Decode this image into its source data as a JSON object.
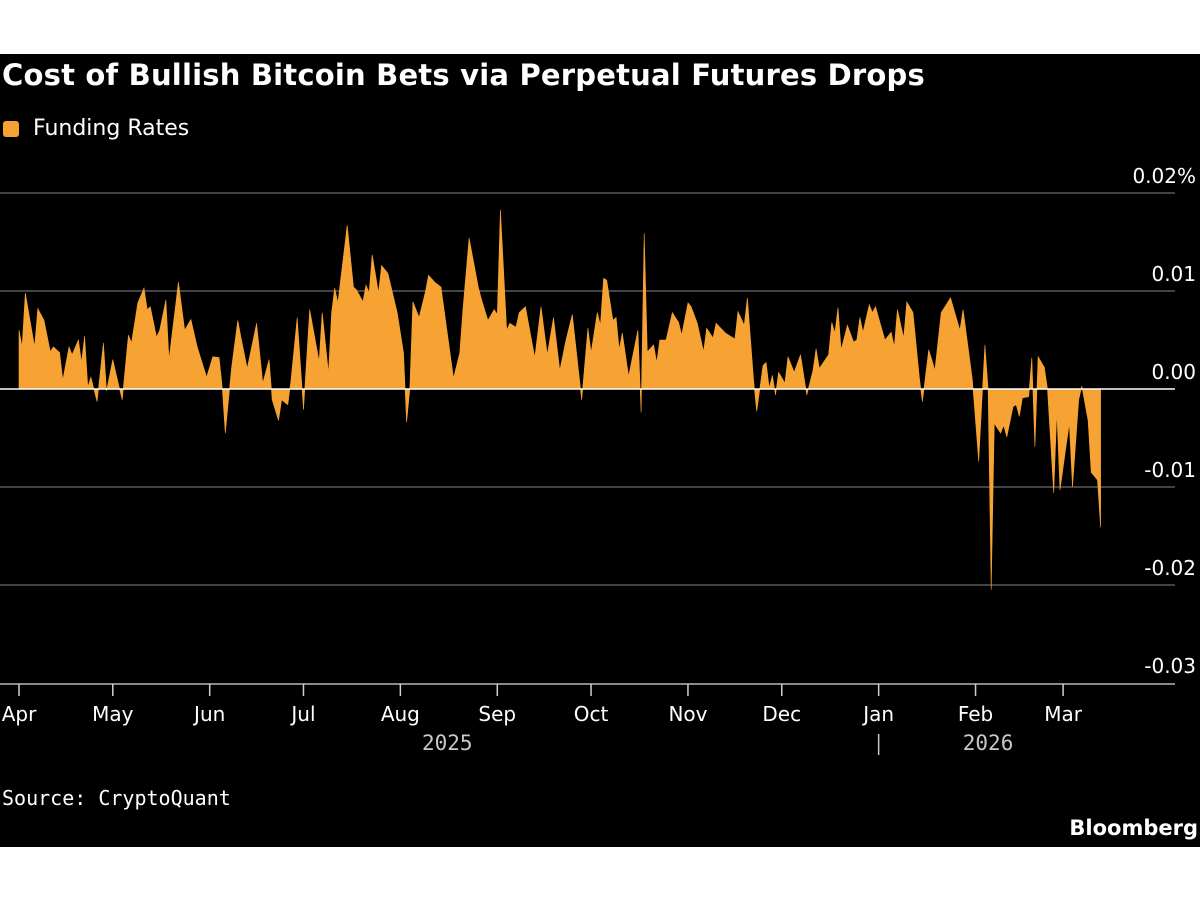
{
  "chart_data": {
    "type": "area",
    "title": "Cost of Bullish Bitcoin Bets via Perpetual Futures Drops",
    "legend": {
      "position": "top-left",
      "entries": [
        "Funding Rates"
      ]
    },
    "source": "Source: CryptoQuant",
    "brand": "Bloomberg",
    "colors": {
      "series": "#f7a334",
      "background": "#000000",
      "grid": "#5a5a5a",
      "zero_line": "#ffffff"
    },
    "ylim": [
      -0.03,
      0.02
    ],
    "y_unit": "%",
    "y_ticks": [
      {
        "value": 0.02,
        "label": "0.02%"
      },
      {
        "value": 0.01,
        "label": "0.01"
      },
      {
        "value": 0.0,
        "label": "0.00"
      },
      {
        "value": -0.01,
        "label": "-0.01"
      },
      {
        "value": -0.02,
        "label": "-0.02"
      },
      {
        "value": -0.03,
        "label": "-0.03"
      }
    ],
    "y_axis_side": "right",
    "grid": true,
    "x_ticks": [
      {
        "date": "2025-04-01",
        "label": "Apr"
      },
      {
        "date": "2025-05-01",
        "label": "May"
      },
      {
        "date": "2025-06-01",
        "label": "Jun"
      },
      {
        "date": "2025-07-01",
        "label": "Jul"
      },
      {
        "date": "2025-08-01",
        "label": "Aug"
      },
      {
        "date": "2025-09-01",
        "label": "Sep"
      },
      {
        "date": "2025-10-01",
        "label": "Oct"
      },
      {
        "date": "2025-11-01",
        "label": "Nov"
      },
      {
        "date": "2025-12-01",
        "label": "Dec"
      },
      {
        "date": "2026-01-01",
        "label": "Jan"
      },
      {
        "date": "2026-02-01",
        "label": "Feb"
      },
      {
        "date": "2026-03-01",
        "label": "Mar"
      }
    ],
    "x_years": [
      {
        "label": "2025",
        "center_date": "2025-08-16"
      },
      {
        "label": "2026",
        "center_date": "2026-02-05"
      }
    ],
    "x_range": [
      "2025-04-01",
      "2026-03-31"
    ],
    "series": [
      {
        "name": "Funding Rates",
        "points": [
          [
            "2025-04-01",
            0.006
          ],
          [
            "2025-04-02",
            0.0043
          ],
          [
            "2025-04-03",
            0.0098
          ],
          [
            "2025-04-06",
            0.0043
          ],
          [
            "2025-04-07",
            0.0082
          ],
          [
            "2025-04-09",
            0.007
          ],
          [
            "2025-04-11",
            0.0038
          ],
          [
            "2025-04-12",
            0.0043
          ],
          [
            "2025-04-14",
            0.0037
          ],
          [
            "2025-04-15",
            0.0009
          ],
          [
            "2025-04-17",
            0.0043
          ],
          [
            "2025-04-18",
            0.0035
          ],
          [
            "2025-04-20",
            0.005
          ],
          [
            "2025-04-21",
            0.0027
          ],
          [
            "2025-04-22",
            0.0054
          ],
          [
            "2025-04-23",
            0.0002
          ],
          [
            "2025-04-24",
            0.0012
          ],
          [
            "2025-04-26",
            -0.0013
          ],
          [
            "2025-04-28",
            0.0047
          ],
          [
            "2025-04-29",
            -0.0002
          ],
          [
            "2025-05-01",
            0.003
          ],
          [
            "2025-05-02",
            0.0016
          ],
          [
            "2025-05-04",
            -0.0011
          ],
          [
            "2025-05-06",
            0.0055
          ],
          [
            "2025-05-07",
            0.0047
          ],
          [
            "2025-05-09",
            0.0088
          ],
          [
            "2025-05-11",
            0.0103
          ],
          [
            "2025-05-12",
            0.0081
          ],
          [
            "2025-05-13",
            0.0084
          ],
          [
            "2025-05-15",
            0.0053
          ],
          [
            "2025-05-16",
            0.006
          ],
          [
            "2025-05-18",
            0.0091
          ],
          [
            "2025-05-19",
            0.003
          ],
          [
            "2025-05-22",
            0.0109
          ],
          [
            "2025-05-24",
            0.006
          ],
          [
            "2025-05-26",
            0.0071
          ],
          [
            "2025-05-28",
            0.0043
          ],
          [
            "2025-05-31",
            0.0012
          ],
          [
            "2025-06-02",
            0.0033
          ],
          [
            "2025-06-04",
            0.0032
          ],
          [
            "2025-06-05",
            0.0002
          ],
          [
            "2025-06-06",
            -0.0045
          ],
          [
            "2025-06-08",
            0.0022
          ],
          [
            "2025-06-10",
            0.007
          ],
          [
            "2025-06-11",
            0.0053
          ],
          [
            "2025-06-13",
            0.0021
          ],
          [
            "2025-06-16",
            0.0067
          ],
          [
            "2025-06-18",
            0.0006
          ],
          [
            "2025-06-20",
            0.003
          ],
          [
            "2025-06-21",
            -0.0011
          ],
          [
            "2025-06-23",
            -0.0032
          ],
          [
            "2025-06-24",
            -0.0011
          ],
          [
            "2025-06-26",
            -0.0016
          ],
          [
            "2025-06-27",
            0.0009
          ],
          [
            "2025-06-29",
            0.0073
          ],
          [
            "2025-07-01",
            -0.0021
          ],
          [
            "2025-07-03",
            0.0081
          ],
          [
            "2025-07-06",
            0.0028
          ],
          [
            "2025-07-07",
            0.0078
          ],
          [
            "2025-07-09",
            0.0016
          ],
          [
            "2025-07-10",
            0.0078
          ],
          [
            "2025-07-11",
            0.0103
          ],
          [
            "2025-07-12",
            0.0088
          ],
          [
            "2025-07-15",
            0.0167
          ],
          [
            "2025-07-17",
            0.0104
          ],
          [
            "2025-07-18",
            0.0101
          ],
          [
            "2025-07-20",
            0.0089
          ],
          [
            "2025-07-21",
            0.0106
          ],
          [
            "2025-07-22",
            0.0098
          ],
          [
            "2025-07-23",
            0.0137
          ],
          [
            "2025-07-25",
            0.0098
          ],
          [
            "2025-07-26",
            0.0126
          ],
          [
            "2025-07-28",
            0.0118
          ],
          [
            "2025-07-31",
            0.0078
          ],
          [
            "2025-08-02",
            0.0037
          ],
          [
            "2025-08-03",
            -0.0034
          ],
          [
            "2025-08-04",
            0.0
          ],
          [
            "2025-08-05",
            0.0089
          ],
          [
            "2025-08-07",
            0.0073
          ],
          [
            "2025-08-09",
            0.0099
          ],
          [
            "2025-08-10",
            0.0116
          ],
          [
            "2025-08-12",
            0.0109
          ],
          [
            "2025-08-14",
            0.0104
          ],
          [
            "2025-08-18",
            0.0011
          ],
          [
            "2025-08-20",
            0.0037
          ],
          [
            "2025-08-21",
            0.0081
          ],
          [
            "2025-08-23",
            0.0154
          ],
          [
            "2025-08-26",
            0.0103
          ],
          [
            "2025-08-27",
            0.0091
          ],
          [
            "2025-08-29",
            0.007
          ],
          [
            "2025-08-31",
            0.0081
          ],
          [
            "2025-09-01",
            0.0076
          ],
          [
            "2025-09-02",
            0.0183
          ],
          [
            "2025-09-04",
            0.006
          ],
          [
            "2025-09-05",
            0.0067
          ],
          [
            "2025-09-07",
            0.0063
          ],
          [
            "2025-09-08",
            0.0078
          ],
          [
            "2025-09-10",
            0.0084
          ],
          [
            "2025-09-13",
            0.0032
          ],
          [
            "2025-09-15",
            0.0084
          ],
          [
            "2025-09-17",
            0.0035
          ],
          [
            "2025-09-19",
            0.0073
          ],
          [
            "2025-09-21",
            0.0019
          ],
          [
            "2025-09-23",
            0.005
          ],
          [
            "2025-09-25",
            0.0076
          ],
          [
            "2025-09-28",
            -0.0011
          ],
          [
            "2025-09-30",
            0.0062
          ],
          [
            "2025-10-01",
            0.0037
          ],
          [
            "2025-10-03",
            0.0078
          ],
          [
            "2025-10-04",
            0.0065
          ],
          [
            "2025-10-05",
            0.0113
          ],
          [
            "2025-10-06",
            0.0111
          ],
          [
            "2025-10-08",
            0.007
          ],
          [
            "2025-10-09",
            0.0073
          ],
          [
            "2025-10-10",
            0.004
          ],
          [
            "2025-10-11",
            0.0057
          ],
          [
            "2025-10-13",
            0.0013
          ],
          [
            "2025-10-16",
            0.006
          ],
          [
            "2025-10-17",
            -0.0024
          ],
          [
            "2025-10-18",
            0.0159
          ],
          [
            "2025-10-19",
            0.0038
          ],
          [
            "2025-10-21",
            0.0045
          ],
          [
            "2025-10-22",
            0.0027
          ],
          [
            "2025-10-23",
            0.005
          ],
          [
            "2025-10-25",
            0.005
          ],
          [
            "2025-10-27",
            0.0078
          ],
          [
            "2025-10-29",
            0.0068
          ],
          [
            "2025-10-30",
            0.0055
          ],
          [
            "2025-11-01",
            0.0088
          ],
          [
            "2025-11-02",
            0.0084
          ],
          [
            "2025-11-04",
            0.0067
          ],
          [
            "2025-11-06",
            0.0038
          ],
          [
            "2025-11-07",
            0.0062
          ],
          [
            "2025-11-09",
            0.0052
          ],
          [
            "2025-11-10",
            0.0067
          ],
          [
            "2025-11-13",
            0.0057
          ],
          [
            "2025-11-16",
            0.0051
          ],
          [
            "2025-11-17",
            0.0079
          ],
          [
            "2025-11-19",
            0.0065
          ],
          [
            "2025-11-20",
            0.0093
          ],
          [
            "2025-11-22",
            0.0009
          ],
          [
            "2025-11-23",
            -0.0023
          ],
          [
            "2025-11-25",
            0.0024
          ],
          [
            "2025-11-26",
            0.0027
          ],
          [
            "2025-11-27",
            0.0001
          ],
          [
            "2025-11-28",
            0.0014
          ],
          [
            "2025-11-29",
            -0.0006
          ],
          [
            "2025-11-30",
            0.0017
          ],
          [
            "2025-12-02",
            0.0006
          ],
          [
            "2025-12-03",
            0.0033
          ],
          [
            "2025-12-05",
            0.0017
          ],
          [
            "2025-12-07",
            0.0035
          ],
          [
            "2025-12-09",
            -0.0006
          ],
          [
            "2025-12-11",
            0.0019
          ],
          [
            "2025-12-12",
            0.0041
          ],
          [
            "2025-12-13",
            0.0021
          ],
          [
            "2025-12-16",
            0.0035
          ],
          [
            "2025-12-17",
            0.0068
          ],
          [
            "2025-12-18",
            0.0057
          ],
          [
            "2025-12-19",
            0.0083
          ],
          [
            "2025-12-20",
            0.004
          ],
          [
            "2025-12-22",
            0.0065
          ],
          [
            "2025-12-24",
            0.0048
          ],
          [
            "2025-12-25",
            0.005
          ],
          [
            "2025-12-26",
            0.0073
          ],
          [
            "2025-12-27",
            0.0058
          ],
          [
            "2025-12-29",
            0.0086
          ],
          [
            "2025-12-30",
            0.0078
          ],
          [
            "2025-12-31",
            0.0084
          ],
          [
            "2026-01-03",
            0.005
          ],
          [
            "2026-01-05",
            0.0058
          ],
          [
            "2026-01-06",
            0.0043
          ],
          [
            "2026-01-07",
            0.0081
          ],
          [
            "2026-01-09",
            0.0052
          ],
          [
            "2026-01-10",
            0.0089
          ],
          [
            "2026-01-12",
            0.0078
          ],
          [
            "2026-01-14",
            0.0012
          ],
          [
            "2026-01-15",
            -0.0013
          ],
          [
            "2026-01-17",
            0.004
          ],
          [
            "2026-01-18",
            0.003
          ],
          [
            "2026-01-19",
            0.0019
          ],
          [
            "2026-01-21",
            0.0078
          ],
          [
            "2026-01-24",
            0.0093
          ],
          [
            "2026-01-27",
            0.006
          ],
          [
            "2026-01-28",
            0.0081
          ],
          [
            "2026-01-31",
            0.0009
          ],
          [
            "2026-02-02",
            -0.0074
          ],
          [
            "2026-02-03",
            -0.0014
          ],
          [
            "2026-02-04",
            0.0045
          ],
          [
            "2026-02-05",
            0.0
          ],
          [
            "2026-02-06",
            -0.0205
          ],
          [
            "2026-02-07",
            -0.0035
          ],
          [
            "2026-02-09",
            -0.0045
          ],
          [
            "2026-02-10",
            -0.0037
          ],
          [
            "2026-02-11",
            -0.0049
          ],
          [
            "2026-02-13",
            -0.0018
          ],
          [
            "2026-02-14",
            -0.0016
          ],
          [
            "2026-02-15",
            -0.0028
          ],
          [
            "2026-02-16",
            -0.0009
          ],
          [
            "2026-02-18",
            -0.0008
          ],
          [
            "2026-02-19",
            0.0032
          ],
          [
            "2026-02-20",
            -0.0059
          ],
          [
            "2026-02-21",
            0.0033
          ],
          [
            "2026-02-23",
            0.0022
          ],
          [
            "2026-02-24",
            0.0
          ],
          [
            "2026-02-26",
            -0.0106
          ],
          [
            "2026-02-27",
            -0.0023
          ],
          [
            "2026-02-28",
            -0.0103
          ],
          [
            "2026-03-02",
            -0.0057
          ],
          [
            "2026-03-03",
            -0.0035
          ],
          [
            "2026-03-04",
            -0.01
          ],
          [
            "2026-03-06",
            -0.0011
          ],
          [
            "2026-03-07",
            0.0003
          ],
          [
            "2026-03-09",
            -0.0032
          ],
          [
            "2026-03-10",
            -0.0085
          ],
          [
            "2026-03-12",
            -0.0093
          ],
          [
            "2026-03-13",
            -0.0141
          ]
        ]
      }
    ]
  }
}
